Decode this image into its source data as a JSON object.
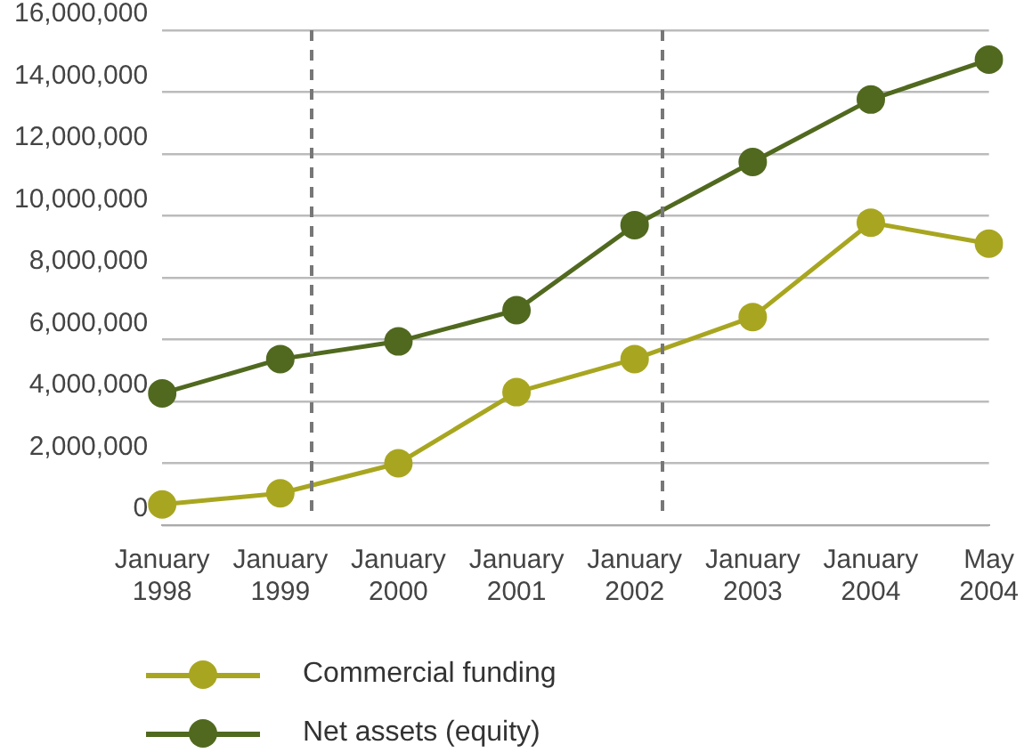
{
  "chart_data": {
    "type": "line",
    "categories": [
      "January 1998",
      "January 1999",
      "January 2000",
      "January 2001",
      "January 2002",
      "January 2003",
      "January 2004",
      "May 2004"
    ],
    "series": [
      {
        "name": "Commercial funding",
        "color": "#a8a620",
        "values": [
          670000,
          1030000,
          2000000,
          4300000,
          5370000,
          6730000,
          9780000,
          9100000
        ]
      },
      {
        "name": "Net assets (equity)",
        "color": "#50691f",
        "values": [
          4260000,
          5370000,
          5940000,
          6950000,
          9700000,
          11740000,
          13760000,
          15050000
        ]
      }
    ],
    "ylim": [
      0,
      16000000
    ],
    "yticks": [
      {
        "value": 0,
        "label": "0"
      },
      {
        "value": 2000000,
        "label": "2,000,000"
      },
      {
        "value": 4000000,
        "label": "4,000,000"
      },
      {
        "value": 6000000,
        "label": "6,000,000"
      },
      {
        "value": 8000000,
        "label": "8,000,000"
      },
      {
        "value": 10000000,
        "label": "10,000,000"
      },
      {
        "value": 12000000,
        "label": "12,000,000"
      },
      {
        "value": 14000000,
        "label": "14,000,000"
      },
      {
        "value": 16000000,
        "label": "16,000,000"
      }
    ],
    "grid": "y",
    "legend": "bottom left",
    "marker": "circle",
    "line_style": "solid"
  }
}
